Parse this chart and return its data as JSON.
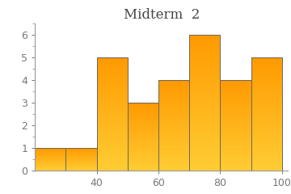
{
  "title": "Midterm  2",
  "bin_edges": [
    20,
    30,
    40,
    50,
    60,
    70,
    80,
    90,
    100
  ],
  "counts": [
    1,
    1,
    5,
    3,
    4,
    6,
    4,
    5
  ],
  "bar_color_light": "#FFCC99",
  "bar_color_main": "#FFA040",
  "bar_edge_color": "#666666",
  "bar_edge_width": 0.7,
  "xlim": [
    20,
    102
  ],
  "ylim": [
    0,
    6.5
  ],
  "xticks": [
    40,
    60,
    80,
    100
  ],
  "yticks": [
    0,
    1,
    2,
    3,
    4,
    5,
    6
  ],
  "title_fontsize": 12,
  "tick_fontsize": 9,
  "background_color": "#ffffff"
}
